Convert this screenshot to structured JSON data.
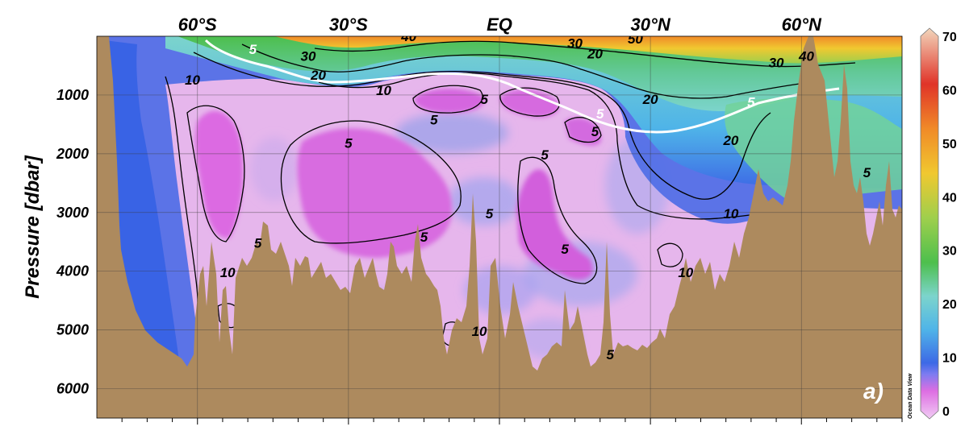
{
  "chart_data": {
    "type": "heatmap",
    "title": "",
    "panel_label": "a)",
    "watermark": "Ocean Data View",
    "xlabel": "",
    "ylabel": "Pressure [dbar]",
    "x_axis": {
      "range": [
        -80,
        80
      ],
      "tick_positions": [
        -60,
        -30,
        0,
        30,
        60
      ],
      "tick_labels": [
        "60°S",
        "30°S",
        "EQ",
        "30°N",
        "60°N"
      ],
      "position": "top"
    },
    "y_axis": {
      "range": [
        0,
        6500
      ],
      "inverted": true,
      "ticks": [
        1000,
        2000,
        3000,
        4000,
        5000,
        6000
      ],
      "tick_labels": [
        "1000",
        "2000",
        "3000",
        "4000",
        "5000",
        "6000"
      ]
    },
    "grid": true,
    "colorbar": {
      "position": "right",
      "range": [
        0,
        70
      ],
      "ticks": [
        0,
        10,
        20,
        30,
        40,
        50,
        60,
        70
      ],
      "tick_labels": [
        "0",
        "10",
        "20",
        "30",
        "40",
        "50",
        "60",
        "70"
      ],
      "stops": [
        {
          "v": 0,
          "c": "#f1cdf4"
        },
        {
          "v": 5,
          "c": "#dd6ee2"
        },
        {
          "v": 8,
          "c": "#7d7cf0"
        },
        {
          "v": 10,
          "c": "#3d69e6"
        },
        {
          "v": 16,
          "c": "#4fb4e8"
        },
        {
          "v": 22,
          "c": "#7cd4cc"
        },
        {
          "v": 28,
          "c": "#4dbf4d"
        },
        {
          "v": 36,
          "c": "#9fcf4c"
        },
        {
          "v": 44,
          "c": "#f0c830"
        },
        {
          "v": 52,
          "c": "#f08a28"
        },
        {
          "v": 60,
          "c": "#e03328"
        },
        {
          "v": 70,
          "c": "#f2d6bc"
        }
      ]
    },
    "contour_labels": [
      {
        "text": "40",
        "lat": -18,
        "p": 80,
        "white": false
      },
      {
        "text": "50",
        "lat": 27,
        "p": 120,
        "white": false
      },
      {
        "text": "30",
        "lat": 15,
        "p": 200,
        "white": false
      },
      {
        "text": "20",
        "lat": 19,
        "p": 380,
        "white": false
      },
      {
        "text": "30",
        "lat": -38,
        "p": 420,
        "white": false
      },
      {
        "text": "20",
        "lat": -36,
        "p": 740,
        "white": false
      },
      {
        "text": "10",
        "lat": -61,
        "p": 820,
        "white": false
      },
      {
        "text": "10",
        "lat": -23,
        "p": 1000,
        "white": false
      },
      {
        "text": "30",
        "lat": 55,
        "p": 530,
        "white": false
      },
      {
        "text": "40",
        "lat": 61,
        "p": 420,
        "white": false
      },
      {
        "text": "20",
        "lat": 30,
        "p": 1150,
        "white": false
      },
      {
        "text": "20",
        "lat": 46,
        "p": 1850,
        "white": false
      },
      {
        "text": "5",
        "lat": -30,
        "p": 1900,
        "white": false
      },
      {
        "text": "5",
        "lat": -13,
        "p": 1500,
        "white": false
      },
      {
        "text": "5",
        "lat": -3,
        "p": 1150,
        "white": false
      },
      {
        "text": "5",
        "lat": 19,
        "p": 1700,
        "white": false
      },
      {
        "text": "5",
        "lat": 9,
        "p": 2100,
        "white": false
      },
      {
        "text": "5",
        "lat": -2,
        "p": 3100,
        "white": false
      },
      {
        "text": "5",
        "lat": -15,
        "p": 3500,
        "white": false
      },
      {
        "text": "5",
        "lat": 13,
        "p": 3700,
        "white": false
      },
      {
        "text": "5",
        "lat": -48,
        "p": 3600,
        "white": false
      },
      {
        "text": "5",
        "lat": 73,
        "p": 2400,
        "white": false
      },
      {
        "text": "5",
        "lat": 22,
        "p": 5500,
        "white": false
      },
      {
        "text": "10",
        "lat": 46,
        "p": 3100,
        "white": false
      },
      {
        "text": "10",
        "lat": 37,
        "p": 4100,
        "white": false
      },
      {
        "text": "10",
        "lat": -54,
        "p": 4100,
        "white": false
      },
      {
        "text": "10",
        "lat": -4,
        "p": 5100,
        "white": false
      },
      {
        "text": "5",
        "lat": -49,
        "p": 300,
        "white": true
      },
      {
        "text": "5",
        "lat": 20,
        "p": 1400,
        "white": true
      },
      {
        "text": "5",
        "lat": 50,
        "p": 1200,
        "white": true
      }
    ]
  }
}
